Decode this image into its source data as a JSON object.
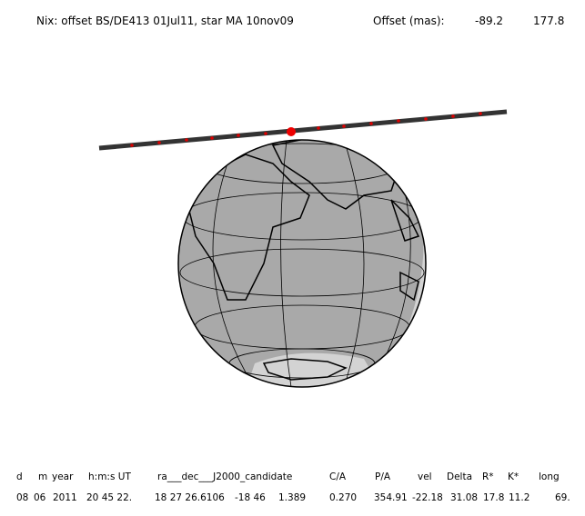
{
  "header": {
    "title": "Nix: offset BS/DE413 01Jul11, star MA 10nov09",
    "offset_label": "Offset (mas):",
    "offset_values": [
      "-89.2",
      "177.8"
    ]
  },
  "table": {
    "headers": [
      "d",
      "m",
      "year",
      "h:m:s UT",
      "ra___dec___J2000_candidate",
      "C/A",
      "P/A",
      "vel",
      "Delta",
      "R*",
      "K*",
      "long"
    ],
    "values": [
      "08",
      "06",
      "2011",
      "20 45 22.",
      "18 27 26.6106",
      "-18 46",
      "1.389",
      "0.270",
      "354.91",
      "-22.18",
      "31.08",
      "17.8",
      "11.2",
      "69."
    ]
  }
}
